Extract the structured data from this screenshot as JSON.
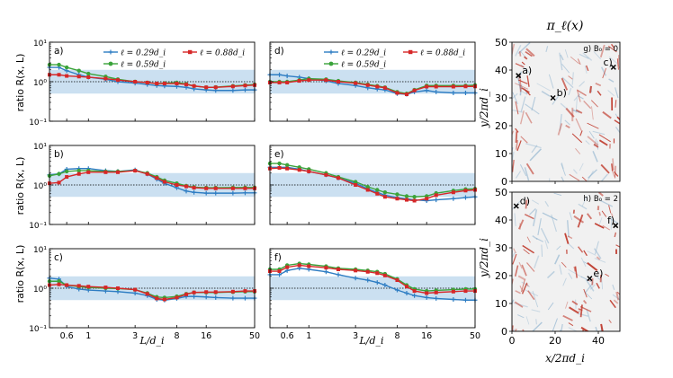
{
  "figure": {
    "right_title": "π_ℓ(x)",
    "ylabel_ratio": "ratio R(x, L)",
    "xlabel_L": "L/d_i",
    "map_xlabel": "x/2πd_i",
    "map_ylabel": "y/2πd_i"
  },
  "colors": {
    "series_1": "#2e7dc3",
    "series_2": "#3aa33a",
    "series_3": "#d62728",
    "band": "#b9d6ec",
    "map_bg": "#f1f1f1",
    "map_red": "#c0392b",
    "map_blue": "#8fb3cf"
  },
  "chart_data": [
    {
      "type": "line",
      "panel": "a)",
      "xscale": "log",
      "yscale": "log",
      "xlim": [
        0.4,
        50
      ],
      "ylim": [
        0.1,
        10
      ],
      "x": [
        0.4,
        0.5,
        0.6,
        0.8,
        1,
        1.5,
        2,
        3,
        4,
        5,
        6,
        8,
        10,
        12,
        16,
        20,
        30,
        40,
        50
      ],
      "series": [
        {
          "name": "ℓ = 0.29d_i",
          "values": [
            2.3,
            2.3,
            1.9,
            1.5,
            1.3,
            1.15,
            1.0,
            0.92,
            0.85,
            0.8,
            0.78,
            0.76,
            0.72,
            0.66,
            0.62,
            0.6,
            0.6,
            0.62,
            0.62
          ]
        },
        {
          "name": "ℓ = 0.59d_i",
          "values": [
            2.7,
            2.7,
            2.3,
            1.9,
            1.6,
            1.35,
            1.15,
            1.0,
            0.95,
            0.9,
            0.92,
            0.95,
            0.88,
            0.78,
            0.72,
            0.73,
            0.78,
            0.82,
            0.85
          ]
        },
        {
          "name": "ℓ = 0.88d_i",
          "values": [
            1.5,
            1.5,
            1.4,
            1.35,
            1.3,
            1.2,
            1.1,
            1.0,
            0.95,
            0.9,
            0.9,
            0.9,
            0.85,
            0.78,
            0.72,
            0.72,
            0.76,
            0.8,
            0.82
          ]
        }
      ],
      "band": [
        0.5,
        2
      ],
      "reference_line": 1,
      "x_tick_labels": [
        "0.6",
        "1",
        "3",
        "8",
        "16",
        "50"
      ],
      "y_tick_labels": [
        "10⁻¹",
        "10⁰",
        "10¹"
      ]
    },
    {
      "type": "line",
      "panel": "b)",
      "xscale": "log",
      "yscale": "log",
      "xlim": [
        0.4,
        50
      ],
      "ylim": [
        0.1,
        10
      ],
      "x": [
        0.4,
        0.5,
        0.6,
        0.8,
        1,
        1.5,
        2,
        3,
        4,
        5,
        6,
        8,
        10,
        12,
        16,
        20,
        30,
        40,
        50
      ],
      "series": [
        {
          "name": "ℓ = 0.29d_i",
          "values": [
            1.8,
            1.9,
            2.5,
            2.6,
            2.6,
            2.3,
            2.2,
            2.4,
            1.9,
            1.4,
            1.1,
            0.85,
            0.7,
            0.65,
            0.62,
            0.62,
            0.62,
            0.63,
            0.63
          ]
        },
        {
          "name": "ℓ = 0.59d_i",
          "values": [
            1.7,
            1.9,
            2.2,
            2.3,
            2.3,
            2.2,
            2.2,
            2.3,
            2.0,
            1.6,
            1.3,
            1.1,
            0.95,
            0.88,
            0.85,
            0.85,
            0.86,
            0.86,
            0.86
          ]
        },
        {
          "name": "ℓ = 0.88d_i",
          "values": [
            1.1,
            1.15,
            1.6,
            1.9,
            2.1,
            2.1,
            2.1,
            2.3,
            1.9,
            1.5,
            1.2,
            1.0,
            0.92,
            0.85,
            0.82,
            0.82,
            0.82,
            0.82,
            0.82
          ]
        }
      ],
      "band": [
        0.5,
        2
      ],
      "reference_line": 1,
      "x_tick_labels": [
        "0.6",
        "1",
        "3",
        "8",
        "16",
        "50"
      ],
      "y_tick_labels": [
        "10⁻¹",
        "10⁰",
        "10¹"
      ]
    },
    {
      "type": "line",
      "panel": "c)",
      "xscale": "log",
      "yscale": "log",
      "xlim": [
        0.4,
        50
      ],
      "ylim": [
        0.1,
        10
      ],
      "x": [
        0.4,
        0.5,
        0.6,
        0.8,
        1,
        1.5,
        2,
        3,
        4,
        5,
        6,
        8,
        10,
        12,
        16,
        20,
        30,
        40,
        50
      ],
      "series": [
        {
          "name": "ℓ = 0.29d_i",
          "values": [
            1.8,
            1.7,
            1.1,
            0.95,
            0.9,
            0.85,
            0.82,
            0.75,
            0.65,
            0.52,
            0.5,
            0.55,
            0.62,
            0.62,
            0.6,
            0.58,
            0.56,
            0.56,
            0.56
          ]
        },
        {
          "name": "ℓ = 0.59d_i",
          "values": [
            1.5,
            1.5,
            1.2,
            1.1,
            1.05,
            1.0,
            0.98,
            0.92,
            0.75,
            0.6,
            0.58,
            0.62,
            0.72,
            0.78,
            0.78,
            0.78,
            0.8,
            0.82,
            0.82
          ]
        },
        {
          "name": "ℓ = 0.88d_i",
          "values": [
            1.2,
            1.25,
            1.2,
            1.15,
            1.1,
            1.05,
            1.0,
            0.92,
            0.72,
            0.55,
            0.52,
            0.58,
            0.7,
            0.78,
            0.8,
            0.8,
            0.82,
            0.85,
            0.85
          ]
        }
      ],
      "band": [
        0.5,
        2
      ],
      "reference_line": 1,
      "x_tick_labels": [
        "0.6",
        "1",
        "3",
        "8",
        "16",
        "50"
      ],
      "y_tick_labels": [
        "10⁻¹",
        "10⁰",
        "10¹"
      ]
    },
    {
      "type": "line",
      "panel": "d)",
      "xscale": "log",
      "yscale": "log",
      "xlim": [
        0.4,
        50
      ],
      "ylim": [
        0.1,
        10
      ],
      "x": [
        0.4,
        0.5,
        0.6,
        0.8,
        1,
        1.5,
        2,
        3,
        4,
        5,
        6,
        8,
        10,
        12,
        16,
        20,
        30,
        40,
        50
      ],
      "series": [
        {
          "name": "ℓ = 0.29d_i",
          "values": [
            1.5,
            1.5,
            1.4,
            1.3,
            1.2,
            1.05,
            0.9,
            0.8,
            0.7,
            0.65,
            0.62,
            0.5,
            0.48,
            0.55,
            0.6,
            0.55,
            0.52,
            0.52,
            0.52
          ]
        },
        {
          "name": "ℓ = 0.59d_i",
          "values": [
            1.0,
            1.0,
            1.0,
            1.1,
            1.2,
            1.15,
            1.05,
            0.95,
            0.85,
            0.78,
            0.72,
            0.55,
            0.5,
            0.62,
            0.8,
            0.8,
            0.8,
            0.8,
            0.82
          ]
        },
        {
          "name": "ℓ = 0.88d_i",
          "values": [
            0.95,
            0.95,
            0.95,
            1.05,
            1.1,
            1.1,
            1.0,
            0.92,
            0.82,
            0.75,
            0.7,
            0.52,
            0.48,
            0.6,
            0.75,
            0.75,
            0.75,
            0.76,
            0.76
          ]
        }
      ],
      "band": [
        0.5,
        2
      ],
      "reference_line": 1,
      "x_tick_labels": [
        "0.6",
        "1",
        "3",
        "8",
        "16",
        "50"
      ],
      "y_tick_labels": [
        "10⁻¹",
        "10⁰",
        "10¹"
      ]
    },
    {
      "type": "line",
      "panel": "e)",
      "xscale": "log",
      "yscale": "log",
      "xlim": [
        0.4,
        50
      ],
      "ylim": [
        0.1,
        10
      ],
      "x": [
        0.4,
        0.5,
        0.6,
        0.8,
        1,
        1.5,
        2,
        3,
        4,
        5,
        6,
        8,
        10,
        12,
        16,
        20,
        30,
        40,
        50
      ],
      "series": [
        {
          "name": "ℓ = 0.29d_i",
          "values": [
            2.8,
            2.8,
            2.8,
            2.5,
            2.2,
            1.8,
            1.5,
            1.1,
            0.8,
            0.65,
            0.55,
            0.48,
            0.45,
            0.42,
            0.4,
            0.42,
            0.45,
            0.48,
            0.5
          ]
        },
        {
          "name": "ℓ = 0.59d_i",
          "values": [
            3.5,
            3.5,
            3.2,
            2.8,
            2.5,
            2.0,
            1.6,
            1.2,
            0.9,
            0.75,
            0.65,
            0.58,
            0.52,
            0.5,
            0.52,
            0.62,
            0.72,
            0.78,
            0.8
          ]
        },
        {
          "name": "ℓ = 0.88d_i",
          "values": [
            2.6,
            2.7,
            2.6,
            2.4,
            2.2,
            1.8,
            1.5,
            1.0,
            0.75,
            0.6,
            0.5,
            0.45,
            0.42,
            0.4,
            0.45,
            0.55,
            0.65,
            0.72,
            0.75
          ]
        }
      ],
      "band": [
        0.5,
        2
      ],
      "reference_line": 1,
      "x_tick_labels": [
        "0.6",
        "1",
        "3",
        "8",
        "16",
        "50"
      ],
      "y_tick_labels": [
        "10⁻¹",
        "10⁰",
        "10¹"
      ]
    },
    {
      "type": "line",
      "panel": "f)",
      "xscale": "log",
      "yscale": "log",
      "xlim": [
        0.4,
        50
      ],
      "ylim": [
        0.1,
        10
      ],
      "x": [
        0.4,
        0.5,
        0.6,
        0.8,
        1,
        1.5,
        2,
        3,
        4,
        5,
        6,
        8,
        10,
        12,
        16,
        20,
        30,
        40,
        50
      ],
      "series": [
        {
          "name": "ℓ = 0.29d_i",
          "values": [
            2.2,
            2.2,
            2.8,
            3.2,
            3.0,
            2.6,
            2.2,
            1.8,
            1.6,
            1.4,
            1.2,
            0.9,
            0.75,
            0.65,
            0.58,
            0.55,
            0.52,
            0.5,
            0.5
          ]
        },
        {
          "name": "ℓ = 0.59d_i",
          "values": [
            3.0,
            3.0,
            3.8,
            4.2,
            4.0,
            3.6,
            3.2,
            3.0,
            2.8,
            2.6,
            2.3,
            1.7,
            1.2,
            0.95,
            0.85,
            0.88,
            0.92,
            0.95,
            0.95
          ]
        },
        {
          "name": "ℓ = 0.88d_i",
          "values": [
            2.7,
            2.7,
            3.4,
            3.8,
            3.6,
            3.3,
            3.0,
            2.8,
            2.6,
            2.4,
            2.1,
            1.6,
            1.1,
            0.85,
            0.75,
            0.78,
            0.82,
            0.85,
            0.85
          ]
        }
      ],
      "band": [
        0.5,
        2
      ],
      "reference_line": 1,
      "x_tick_labels": [
        "0.6",
        "1",
        "3",
        "8",
        "16",
        "50"
      ],
      "y_tick_labels": [
        "10⁻¹",
        "10⁰",
        "10¹"
      ]
    },
    {
      "type": "heatmap",
      "panel": "g)",
      "annotation": "g) B₀ = 0",
      "xlim": [
        0,
        50
      ],
      "ylim": [
        0,
        50
      ],
      "x_tick_labels": [
        "0",
        "20",
        "40"
      ],
      "y_tick_labels": [
        "0",
        "10",
        "20",
        "30",
        "40",
        "50"
      ],
      "markers": [
        {
          "label": "a)",
          "x": 3,
          "y": 38
        },
        {
          "label": "b)",
          "x": 19,
          "y": 30
        },
        {
          "label": "c)",
          "x": 47,
          "y": 41
        }
      ]
    },
    {
      "type": "heatmap",
      "panel": "h)",
      "annotation": "h) B₀ = 2",
      "xlim": [
        0,
        50
      ],
      "ylim": [
        0,
        50
      ],
      "x_tick_labels": [
        "0",
        "20",
        "40"
      ],
      "y_tick_labels": [
        "0",
        "10",
        "20",
        "30",
        "40",
        "50"
      ],
      "markers": [
        {
          "label": "d)",
          "x": 2,
          "y": 45
        },
        {
          "label": "e)",
          "x": 36,
          "y": 19
        },
        {
          "label": "f)",
          "x": 48,
          "y": 38
        }
      ]
    }
  ]
}
